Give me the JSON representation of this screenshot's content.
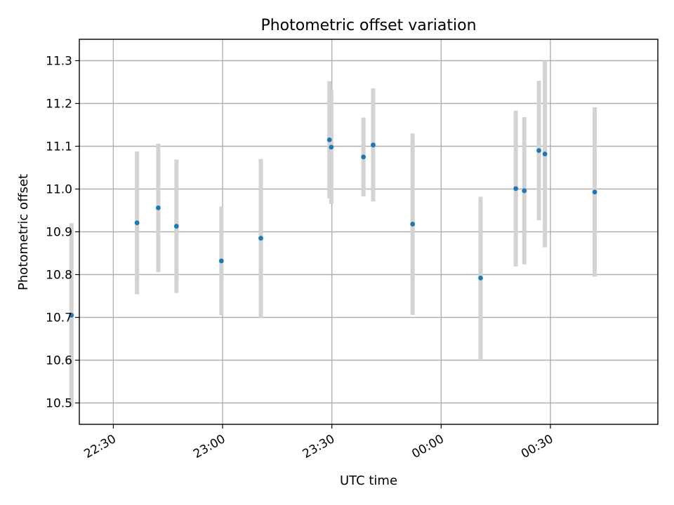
{
  "chart_data": {
    "type": "scatter",
    "title": "Photometric offset variation",
    "xlabel": "UTC time",
    "ylabel": "Photometric offset",
    "x_axis_kind": "time",
    "x_range": [
      "22:20:40",
      "00:59:30"
    ],
    "x_ticks": [
      "22:30",
      "23:00",
      "23:30",
      "00:00",
      "00:30"
    ],
    "ylim": [
      10.45,
      11.35
    ],
    "y_ticks": [
      10.5,
      10.6,
      10.7,
      10.8,
      10.9,
      11.0,
      11.1,
      11.2,
      11.3
    ],
    "grid": true,
    "series": [
      {
        "point_color": "#1f77b4",
        "errorbar_color": "#d3d3d3",
        "points": [
          {
            "x": "22:18:30",
            "y": 10.705,
            "err": 0.215
          },
          {
            "x": "22:36:30",
            "y": 10.921,
            "err": 0.167
          },
          {
            "x": "22:42:20",
            "y": 10.956,
            "err": 0.15
          },
          {
            "x": "22:47:20",
            "y": 10.913,
            "err": 0.156
          },
          {
            "x": "22:59:40",
            "y": 10.832,
            "err": 0.127
          },
          {
            "x": "23:10:30",
            "y": 10.885,
            "err": 0.185
          },
          {
            "x": "23:29:20",
            "y": 11.115,
            "err": 0.137
          },
          {
            "x": "23:29:50",
            "y": 11.098,
            "err": 0.133
          },
          {
            "x": "23:38:40",
            "y": 11.075,
            "err": 0.092
          },
          {
            "x": "23:41:20",
            "y": 11.103,
            "err": 0.132
          },
          {
            "x": "23:52:10",
            "y": 10.918,
            "err": 0.212
          },
          {
            "x": "00:10:50",
            "y": 10.792,
            "err": 0.19
          },
          {
            "x": "00:20:30",
            "y": 11.001,
            "err": 0.182
          },
          {
            "x": "00:22:50",
            "y": 10.996,
            "err": 0.172
          },
          {
            "x": "00:26:50",
            "y": 11.09,
            "err": 0.163
          },
          {
            "x": "00:28:30",
            "y": 11.082,
            "err": 0.218
          },
          {
            "x": "00:42:10",
            "y": 10.993,
            "err": 0.198
          }
        ]
      }
    ]
  }
}
